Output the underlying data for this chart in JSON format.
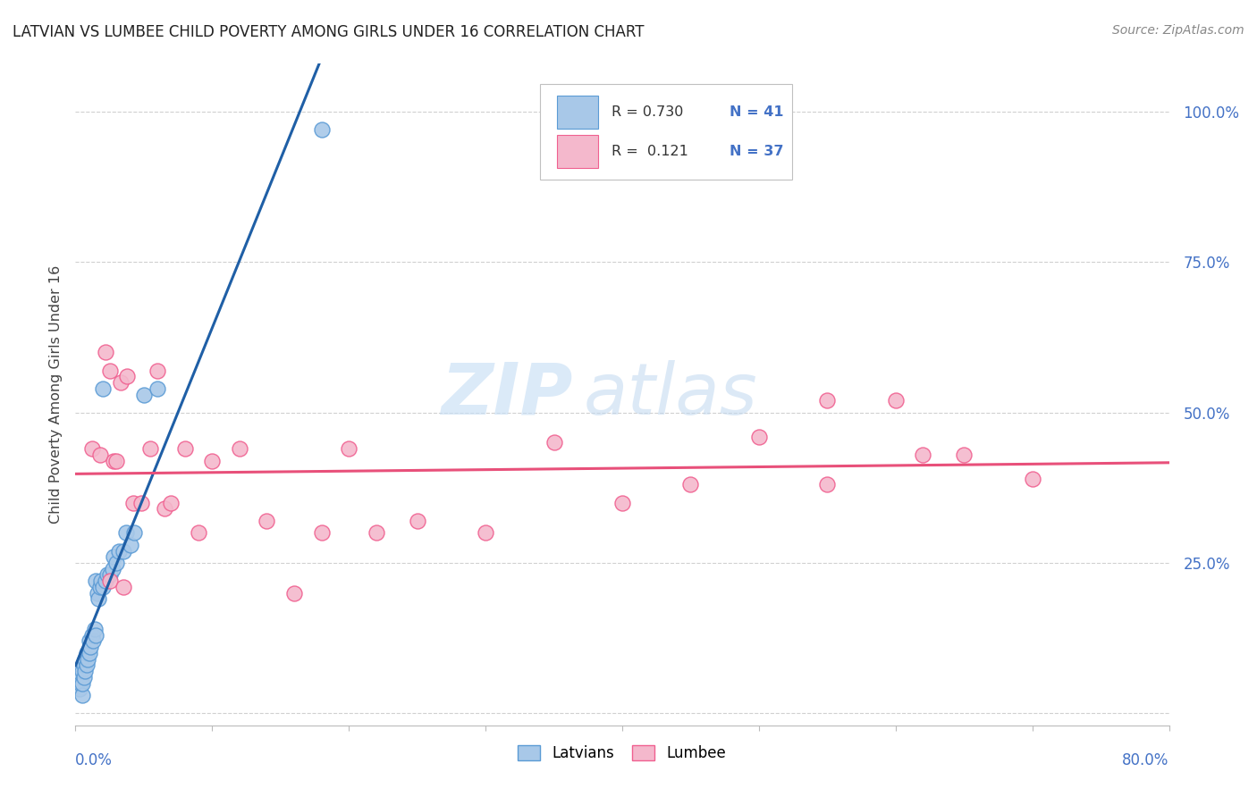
{
  "title": "LATVIAN VS LUMBEE CHILD POVERTY AMONG GIRLS UNDER 16 CORRELATION CHART",
  "source": "Source: ZipAtlas.com",
  "ylabel": "Child Poverty Among Girls Under 16",
  "yticks": [
    0.0,
    0.25,
    0.5,
    0.75,
    1.0
  ],
  "ytick_labels": [
    "",
    "25.0%",
    "50.0%",
    "75.0%",
    "100.0%"
  ],
  "xlim": [
    0.0,
    0.8
  ],
  "ylim": [
    -0.02,
    1.08
  ],
  "latvian_color": "#a8c8e8",
  "lumbee_color": "#f4b8cc",
  "latvian_edge_color": "#5b9bd5",
  "lumbee_edge_color": "#f06090",
  "regression_latvian_color": "#1f5fa6",
  "regression_lumbee_color": "#e8507a",
  "R_latvian": 0.73,
  "N_latvian": 41,
  "R_lumbee": 0.121,
  "N_lumbee": 37,
  "background_color": "#ffffff",
  "grid_color": "#d0d0d0",
  "watermark_zip_color": "#c8dff5",
  "watermark_atlas_color": "#c0d8f0"
}
